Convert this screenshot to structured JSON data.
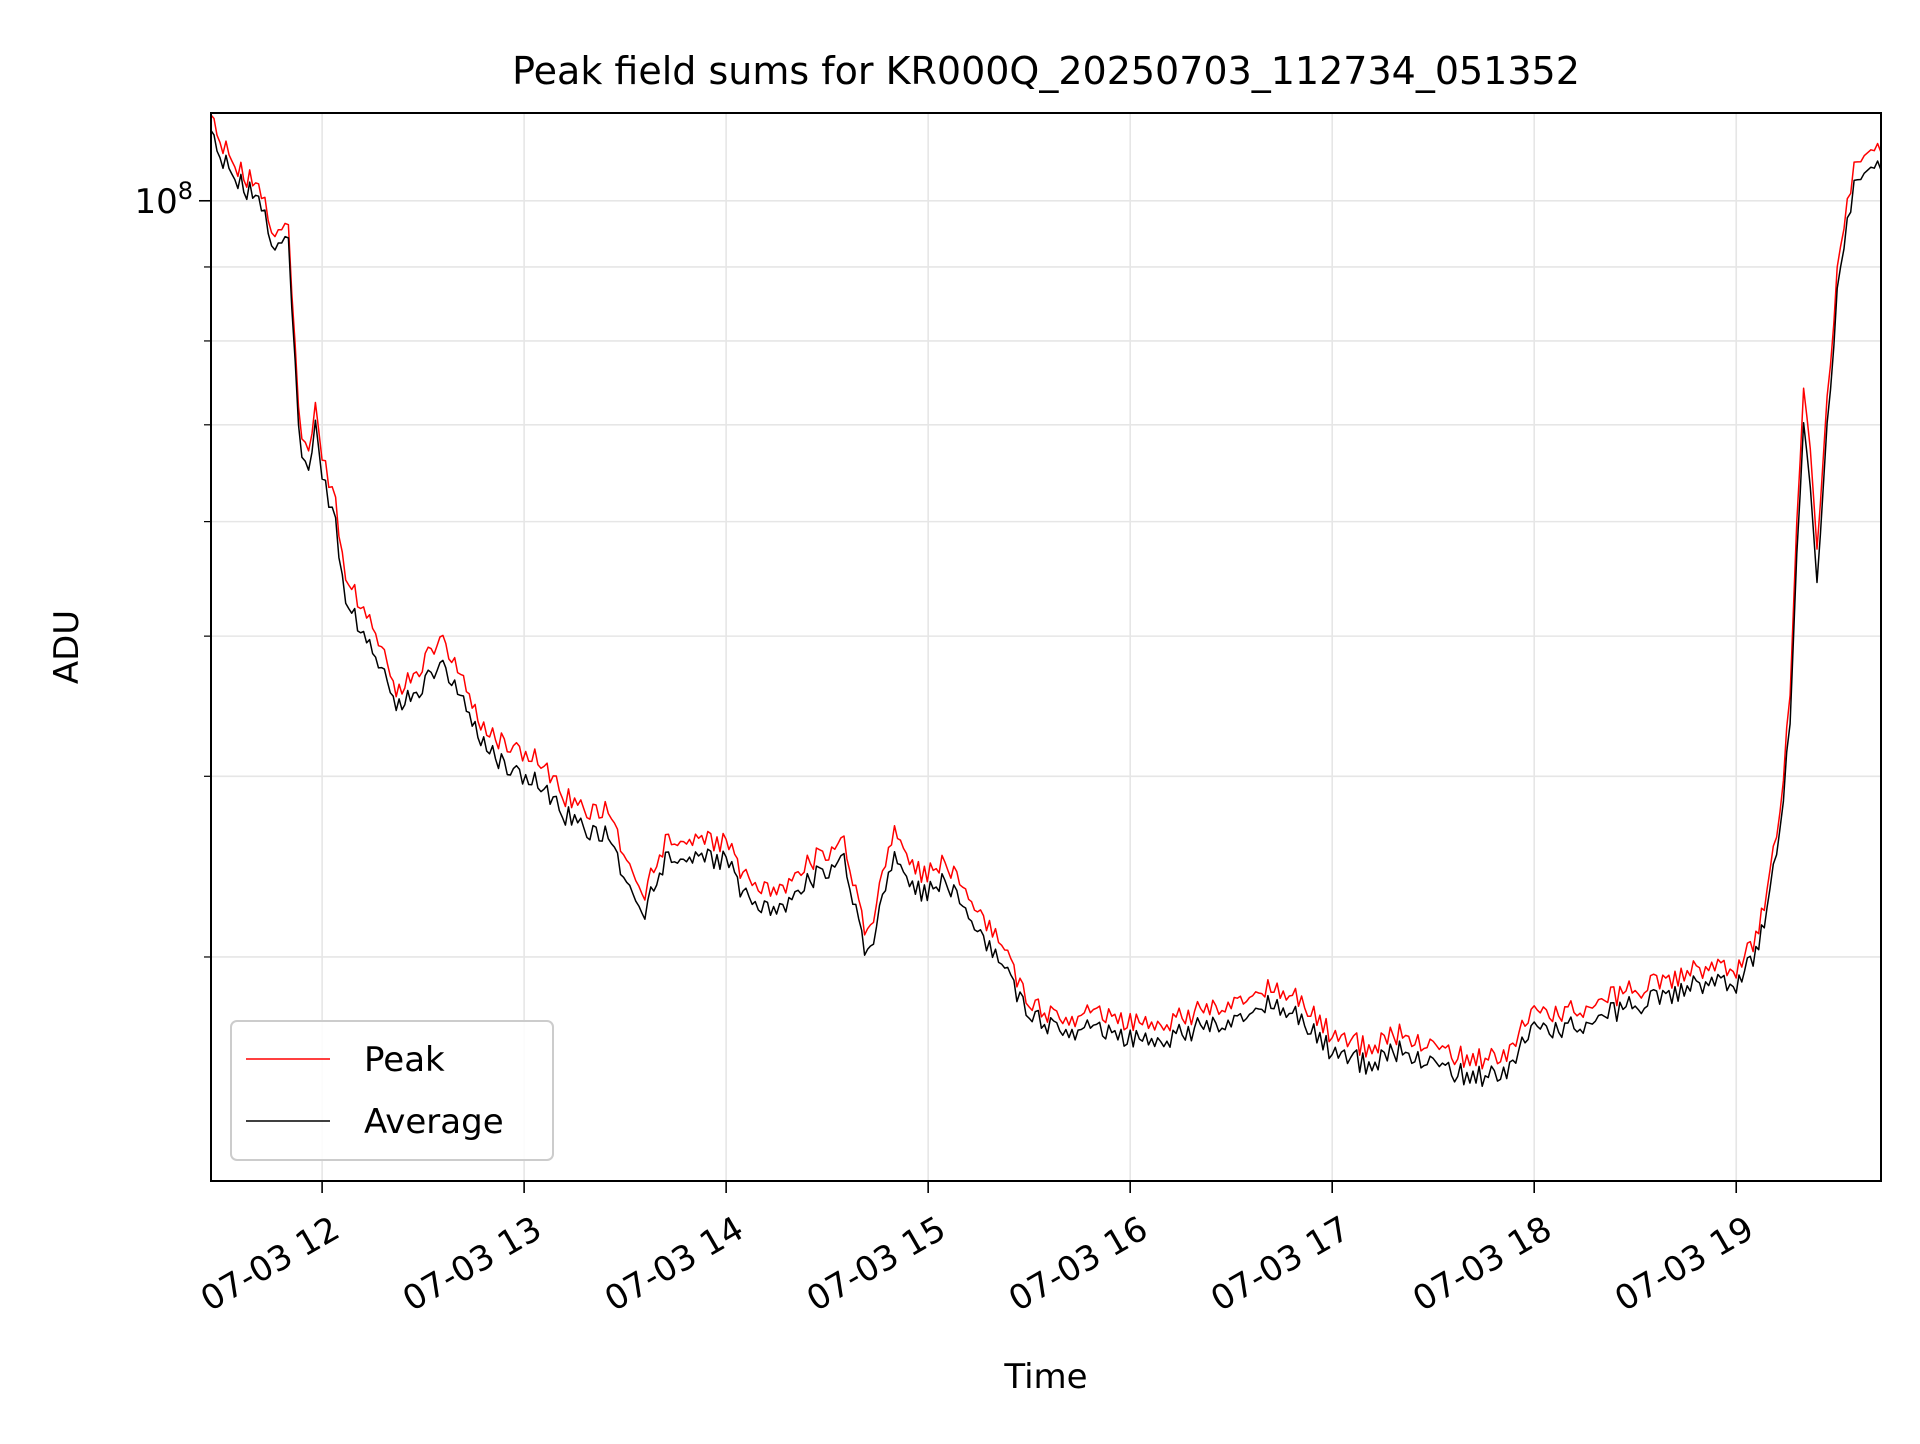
{
  "chart_data": {
    "type": "line",
    "title": "Peak field sums for KR000Q_20250703_112734_051352",
    "xlabel": "Time",
    "ylabel": "ADU",
    "y_scale": "log",
    "grid": true,
    "legend_position": "bottom-left",
    "x_range": [
      "07-03 11:27",
      "07-03 19:43"
    ],
    "ylim": [
      21000000,
      115000000
    ],
    "x_ticks": [
      {
        "t": "07-03 12:00",
        "label": "07-03 12"
      },
      {
        "t": "07-03 13:00",
        "label": "07-03 13"
      },
      {
        "t": "07-03 14:00",
        "label": "07-03 14"
      },
      {
        "t": "07-03 15:00",
        "label": "07-03 15"
      },
      {
        "t": "07-03 16:00",
        "label": "07-03 16"
      },
      {
        "t": "07-03 17:00",
        "label": "07-03 17"
      },
      {
        "t": "07-03 18:00",
        "label": "07-03 18"
      },
      {
        "t": "07-03 19:00",
        "label": "07-03 19"
      }
    ],
    "y_major_ticks": [
      {
        "value": 100000000,
        "base": "10",
        "exp": "8"
      }
    ],
    "y_minor_ticks": [
      30000000,
      40000000,
      50000000,
      60000000,
      70000000,
      80000000,
      90000000
    ],
    "series": [
      {
        "name": "Peak",
        "color": "#ff0000",
        "points": [
          [
            "07-03 11:27",
            113000000
          ],
          [
            "07-03 11:35",
            105000000
          ],
          [
            "07-03 11:42",
            102000000
          ],
          [
            "07-03 11:46",
            95000000
          ],
          [
            "07-03 11:50",
            96000000
          ],
          [
            "07-03 11:53",
            71000000
          ],
          [
            "07-03 11:56",
            66000000
          ],
          [
            "07-03 11:58",
            72000000
          ],
          [
            "07-03 12:01",
            65000000
          ],
          [
            "07-03 12:04",
            62000000
          ],
          [
            "07-03 12:07",
            55000000
          ],
          [
            "07-03 12:15",
            51000000
          ],
          [
            "07-03 12:22",
            46000000
          ],
          [
            "07-03 12:28",
            47000000
          ],
          [
            "07-03 12:35",
            50000000
          ],
          [
            "07-03 12:42",
            47000000
          ],
          [
            "07-03 12:48",
            43000000
          ],
          [
            "07-03 12:55",
            42000000
          ],
          [
            "07-03 13:05",
            41000000
          ],
          [
            "07-03 13:15",
            38000000
          ],
          [
            "07-03 13:25",
            38000000
          ],
          [
            "07-03 13:35",
            33000000
          ],
          [
            "07-03 13:42",
            36000000
          ],
          [
            "07-03 13:50",
            36000000
          ],
          [
            "07-03 14:00",
            36000000
          ],
          [
            "07-03 14:05",
            34000000
          ],
          [
            "07-03 14:15",
            33000000
          ],
          [
            "07-03 14:25",
            35000000
          ],
          [
            "07-03 14:35",
            36000000
          ],
          [
            "07-03 14:42",
            31000000
          ],
          [
            "07-03 14:50",
            37000000
          ],
          [
            "07-03 14:58",
            34000000
          ],
          [
            "07-03 15:05",
            35000000
          ],
          [
            "07-03 15:12",
            33000000
          ],
          [
            "07-03 15:20",
            31000000
          ],
          [
            "07-03 15:30",
            28000000
          ],
          [
            "07-03 15:40",
            27000000
          ],
          [
            "07-03 15:50",
            27500000
          ],
          [
            "07-03 16:00",
            27000000
          ],
          [
            "07-03 16:10",
            27000000
          ],
          [
            "07-03 16:20",
            27500000
          ],
          [
            "07-03 16:30",
            28000000
          ],
          [
            "07-03 16:40",
            28500000
          ],
          [
            "07-03 16:50",
            28000000
          ],
          [
            "07-03 17:00",
            26500000
          ],
          [
            "07-03 17:10",
            26000000
          ],
          [
            "07-03 17:20",
            26500000
          ],
          [
            "07-03 17:30",
            26000000
          ],
          [
            "07-03 17:40",
            25500000
          ],
          [
            "07-03 17:50",
            25500000
          ],
          [
            "07-03 18:00",
            27500000
          ],
          [
            "07-03 18:10",
            27500000
          ],
          [
            "07-03 18:20",
            28000000
          ],
          [
            "07-03 18:30",
            28500000
          ],
          [
            "07-03 18:40",
            29000000
          ],
          [
            "07-03 18:50",
            29500000
          ],
          [
            "07-03 19:00",
            29500000
          ],
          [
            "07-03 19:05",
            30500000
          ],
          [
            "07-03 19:10",
            34000000
          ],
          [
            "07-03 19:13",
            38000000
          ],
          [
            "07-03 19:16",
            45000000
          ],
          [
            "07-03 19:18",
            60000000
          ],
          [
            "07-03 19:20",
            75000000
          ],
          [
            "07-03 19:22",
            68000000
          ],
          [
            "07-03 19:24",
            58000000
          ],
          [
            "07-03 19:27",
            72000000
          ],
          [
            "07-03 19:30",
            90000000
          ],
          [
            "07-03 19:33",
            100000000
          ],
          [
            "07-03 19:36",
            107000000
          ],
          [
            "07-03 19:40",
            110000000
          ],
          [
            "07-03 19:43",
            108000000
          ]
        ]
      },
      {
        "name": "Average",
        "color": "#000000",
        "points": [
          [
            "07-03 11:27",
            110000000
          ],
          [
            "07-03 11:35",
            103000000
          ],
          [
            "07-03 11:42",
            100000000
          ],
          [
            "07-03 11:46",
            93000000
          ],
          [
            "07-03 11:50",
            94000000
          ],
          [
            "07-03 11:53",
            69000000
          ],
          [
            "07-03 11:56",
            64000000
          ],
          [
            "07-03 11:58",
            70000000
          ],
          [
            "07-03 12:01",
            63000000
          ],
          [
            "07-03 12:04",
            60000000
          ],
          [
            "07-03 12:07",
            53000000
          ],
          [
            "07-03 12:15",
            49000000
          ],
          [
            "07-03 12:22",
            45000000
          ],
          [
            "07-03 12:28",
            45500000
          ],
          [
            "07-03 12:35",
            48000000
          ],
          [
            "07-03 12:42",
            45500000
          ],
          [
            "07-03 12:48",
            42000000
          ],
          [
            "07-03 12:55",
            40500000
          ],
          [
            "07-03 13:05",
            39500000
          ],
          [
            "07-03 13:15",
            37000000
          ],
          [
            "07-03 13:25",
            36500000
          ],
          [
            "07-03 13:35",
            32000000
          ],
          [
            "07-03 13:42",
            35000000
          ],
          [
            "07-03 13:50",
            35000000
          ],
          [
            "07-03 14:00",
            35000000
          ],
          [
            "07-03 14:05",
            33000000
          ],
          [
            "07-03 14:15",
            32000000
          ],
          [
            "07-03 14:25",
            34000000
          ],
          [
            "07-03 14:35",
            35000000
          ],
          [
            "07-03 14:42",
            30000000
          ],
          [
            "07-03 14:50",
            35500000
          ],
          [
            "07-03 14:58",
            33000000
          ],
          [
            "07-03 15:05",
            34000000
          ],
          [
            "07-03 15:12",
            32000000
          ],
          [
            "07-03 15:20",
            30000000
          ],
          [
            "07-03 15:30",
            27500000
          ],
          [
            "07-03 15:40",
            26500000
          ],
          [
            "07-03 15:50",
            26800000
          ],
          [
            "07-03 16:00",
            26300000
          ],
          [
            "07-03 16:10",
            26300000
          ],
          [
            "07-03 16:20",
            26800000
          ],
          [
            "07-03 16:30",
            27200000
          ],
          [
            "07-03 16:40",
            27800000
          ],
          [
            "07-03 16:50",
            27200000
          ],
          [
            "07-03 17:00",
            25800000
          ],
          [
            "07-03 17:10",
            25300000
          ],
          [
            "07-03 17:20",
            25800000
          ],
          [
            "07-03 17:30",
            25300000
          ],
          [
            "07-03 17:40",
            24800000
          ],
          [
            "07-03 17:50",
            24800000
          ],
          [
            "07-03 18:00",
            26800000
          ],
          [
            "07-03 18:10",
            26800000
          ],
          [
            "07-03 18:20",
            27300000
          ],
          [
            "07-03 18:30",
            27800000
          ],
          [
            "07-03 18:40",
            28300000
          ],
          [
            "07-03 18:50",
            28800000
          ],
          [
            "07-03 19:00",
            28800000
          ],
          [
            "07-03 19:05",
            29800000
          ],
          [
            "07-03 19:10",
            33000000
          ],
          [
            "07-03 19:13",
            37000000
          ],
          [
            "07-03 19:16",
            43000000
          ],
          [
            "07-03 19:18",
            57000000
          ],
          [
            "07-03 19:20",
            71000000
          ],
          [
            "07-03 19:22",
            64000000
          ],
          [
            "07-03 19:24",
            55000000
          ],
          [
            "07-03 19:27",
            69000000
          ],
          [
            "07-03 19:30",
            87000000
          ],
          [
            "07-03 19:33",
            97000000
          ],
          [
            "07-03 19:36",
            104000000
          ],
          [
            "07-03 19:40",
            107000000
          ],
          [
            "07-03 19:43",
            105000000
          ]
        ]
      }
    ]
  }
}
